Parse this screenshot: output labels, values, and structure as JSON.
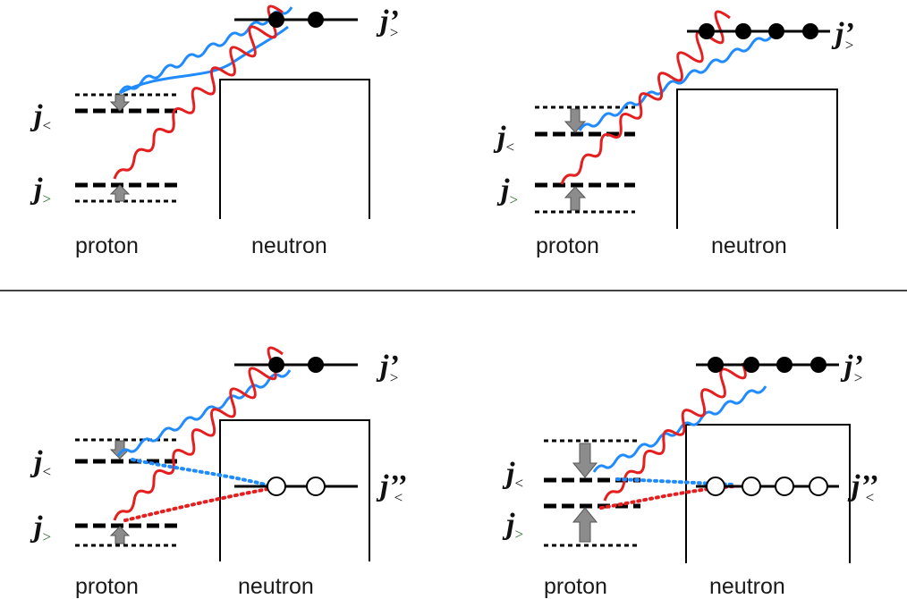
{
  "labels": {
    "proton": "proton",
    "neutron": "neutron"
  },
  "orbits": {
    "j_less": {
      "base": "j",
      "sub": "<"
    },
    "j_greater": {
      "base": "j",
      "sub": ">"
    },
    "jprime_greater": {
      "base": "j’",
      "sub": ">"
    },
    "jdprime_less": {
      "base": "j’’",
      "sub": "<"
    }
  },
  "panels": [
    {
      "id": "top-left",
      "filled_neutrons": 2,
      "empty_neutrons": 0
    },
    {
      "id": "top-right",
      "filled_neutrons": 4,
      "empty_neutrons": 0
    },
    {
      "id": "bottom-left",
      "filled_neutrons": 2,
      "empty_neutrons": 2
    },
    {
      "id": "bottom-right",
      "filled_neutrons": 4,
      "empty_neutrons": 4
    }
  ],
  "colors": {
    "blue_wave": "#1f8bff",
    "red_wave": "#e51f1f",
    "arrow_fill": "#8c8c8c",
    "line": "#000000",
    "jsub_green": "#2f6b2f"
  }
}
